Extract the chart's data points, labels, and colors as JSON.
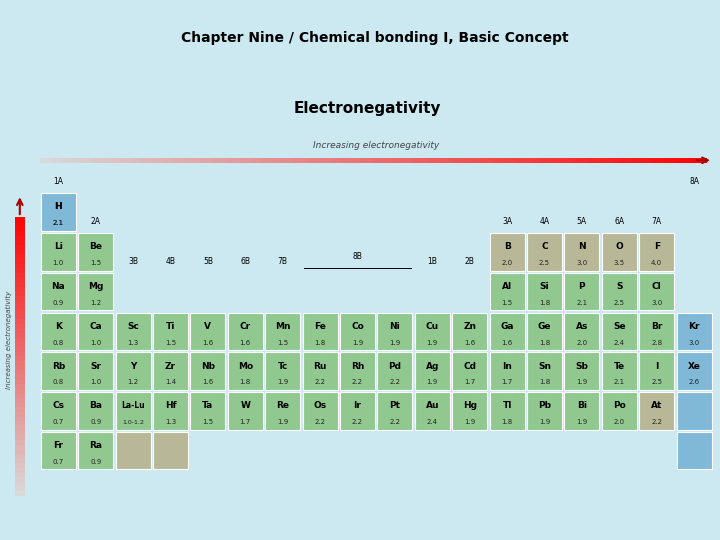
{
  "title": "Chapter Nine / Chemical bonding I, Basic Concept",
  "subtitle": "Electronegativity",
  "increasing_text": "Increasing electronegativity",
  "bg_color": "#cce8f0",
  "header_color": "#50c8c8",
  "subtitle_box_color": "#40b0a8",
  "cell_green": "#90c890",
  "cell_blue": "#80b8d8",
  "cell_tan": "#b8b898",
  "table_elements": [
    {
      "symbol": "H",
      "val": "2.1",
      "col": 0,
      "row": 0,
      "color": "blue"
    },
    {
      "symbol": "Li",
      "val": "1.0",
      "col": 0,
      "row": 1,
      "color": "green"
    },
    {
      "symbol": "Be",
      "val": "1.5",
      "col": 1,
      "row": 1,
      "color": "green"
    },
    {
      "symbol": "Na",
      "val": "0.9",
      "col": 0,
      "row": 2,
      "color": "green"
    },
    {
      "symbol": "Mg",
      "val": "1.2",
      "col": 1,
      "row": 2,
      "color": "green"
    },
    {
      "symbol": "K",
      "val": "0.8",
      "col": 0,
      "row": 3,
      "color": "green"
    },
    {
      "symbol": "Ca",
      "val": "1.0",
      "col": 1,
      "row": 3,
      "color": "green"
    },
    {
      "symbol": "Rb",
      "val": "0.8",
      "col": 0,
      "row": 4,
      "color": "green"
    },
    {
      "symbol": "Sr",
      "val": "1.0",
      "col": 1,
      "row": 4,
      "color": "green"
    },
    {
      "symbol": "Cs",
      "val": "0.7",
      "col": 0,
      "row": 5,
      "color": "green"
    },
    {
      "symbol": "Ba",
      "val": "0.9",
      "col": 1,
      "row": 5,
      "color": "green"
    },
    {
      "symbol": "Fr",
      "val": "0.7",
      "col": 0,
      "row": 6,
      "color": "green"
    },
    {
      "symbol": "Ra",
      "val": "0.9",
      "col": 1,
      "row": 6,
      "color": "green"
    },
    {
      "symbol": "Sc",
      "val": "1.3",
      "col": 2,
      "row": 3,
      "color": "green"
    },
    {
      "symbol": "Ti",
      "val": "1.5",
      "col": 3,
      "row": 3,
      "color": "green"
    },
    {
      "symbol": "V",
      "val": "1.6",
      "col": 4,
      "row": 3,
      "color": "green"
    },
    {
      "symbol": "Cr",
      "val": "1.6",
      "col": 5,
      "row": 3,
      "color": "green"
    },
    {
      "symbol": "Mn",
      "val": "1.5",
      "col": 6,
      "row": 3,
      "color": "green"
    },
    {
      "symbol": "Fe",
      "val": "1.8",
      "col": 7,
      "row": 3,
      "color": "green"
    },
    {
      "symbol": "Co",
      "val": "1.9",
      "col": 8,
      "row": 3,
      "color": "green"
    },
    {
      "symbol": "Ni",
      "val": "1.9",
      "col": 9,
      "row": 3,
      "color": "green"
    },
    {
      "symbol": "Cu",
      "val": "1.9",
      "col": 10,
      "row": 3,
      "color": "green"
    },
    {
      "symbol": "Zn",
      "val": "1.6",
      "col": 11,
      "row": 3,
      "color": "green"
    },
    {
      "symbol": "Y",
      "val": "1.2",
      "col": 2,
      "row": 4,
      "color": "green"
    },
    {
      "symbol": "Zr",
      "val": "1.4",
      "col": 3,
      "row": 4,
      "color": "green"
    },
    {
      "symbol": "Nb",
      "val": "1.6",
      "col": 4,
      "row": 4,
      "color": "green"
    },
    {
      "symbol": "Mo",
      "val": "1.8",
      "col": 5,
      "row": 4,
      "color": "green"
    },
    {
      "symbol": "Tc",
      "val": "1.9",
      "col": 6,
      "row": 4,
      "color": "green"
    },
    {
      "symbol": "Ru",
      "val": "2.2",
      "col": 7,
      "row": 4,
      "color": "green"
    },
    {
      "symbol": "Rh",
      "val": "2.2",
      "col": 8,
      "row": 4,
      "color": "green"
    },
    {
      "symbol": "Pd",
      "val": "2.2",
      "col": 9,
      "row": 4,
      "color": "green"
    },
    {
      "symbol": "Ag",
      "val": "1.9",
      "col": 10,
      "row": 4,
      "color": "green"
    },
    {
      "symbol": "Cd",
      "val": "1.7",
      "col": 11,
      "row": 4,
      "color": "green"
    },
    {
      "symbol": "La-Lu",
      "val": "1.0-1.2",
      "col": 2,
      "row": 5,
      "color": "green"
    },
    {
      "symbol": "Hf",
      "val": "1.3",
      "col": 3,
      "row": 5,
      "color": "green"
    },
    {
      "symbol": "Ta",
      "val": "1.5",
      "col": 4,
      "row": 5,
      "color": "green"
    },
    {
      "symbol": "W",
      "val": "1.7",
      "col": 5,
      "row": 5,
      "color": "green"
    },
    {
      "symbol": "Re",
      "val": "1.9",
      "col": 6,
      "row": 5,
      "color": "green"
    },
    {
      "symbol": "Os",
      "val": "2.2",
      "col": 7,
      "row": 5,
      "color": "green"
    },
    {
      "symbol": "Ir",
      "val": "2.2",
      "col": 8,
      "row": 5,
      "color": "green"
    },
    {
      "symbol": "Pt",
      "val": "2.2",
      "col": 9,
      "row": 5,
      "color": "green"
    },
    {
      "symbol": "Au",
      "val": "2.4",
      "col": 10,
      "row": 5,
      "color": "green"
    },
    {
      "symbol": "Hg",
      "val": "1.9",
      "col": 11,
      "row": 5,
      "color": "green"
    },
    {
      "symbol": "B",
      "val": "2.0",
      "col": 12,
      "row": 1,
      "color": "tan"
    },
    {
      "symbol": "C",
      "val": "2.5",
      "col": 13,
      "row": 1,
      "color": "tan"
    },
    {
      "symbol": "N",
      "val": "3.0",
      "col": 14,
      "row": 1,
      "color": "tan"
    },
    {
      "symbol": "O",
      "val": "3.5",
      "col": 15,
      "row": 1,
      "color": "tan"
    },
    {
      "symbol": "F",
      "val": "4.0",
      "col": 16,
      "row": 1,
      "color": "tan"
    },
    {
      "symbol": "Al",
      "val": "1.5",
      "col": 12,
      "row": 2,
      "color": "green"
    },
    {
      "symbol": "Si",
      "val": "1.8",
      "col": 13,
      "row": 2,
      "color": "green"
    },
    {
      "symbol": "P",
      "val": "2.1",
      "col": 14,
      "row": 2,
      "color": "green"
    },
    {
      "symbol": "S",
      "val": "2.5",
      "col": 15,
      "row": 2,
      "color": "green"
    },
    {
      "symbol": "Cl",
      "val": "3.0",
      "col": 16,
      "row": 2,
      "color": "green"
    },
    {
      "symbol": "Ga",
      "val": "1.6",
      "col": 12,
      "row": 3,
      "color": "green"
    },
    {
      "symbol": "Ge",
      "val": "1.8",
      "col": 13,
      "row": 3,
      "color": "green"
    },
    {
      "symbol": "As",
      "val": "2.0",
      "col": 14,
      "row": 3,
      "color": "green"
    },
    {
      "symbol": "Se",
      "val": "2.4",
      "col": 15,
      "row": 3,
      "color": "green"
    },
    {
      "symbol": "Br",
      "val": "2.8",
      "col": 16,
      "row": 3,
      "color": "green"
    },
    {
      "symbol": "Kr",
      "val": "3.0",
      "col": 17,
      "row": 3,
      "color": "blue"
    },
    {
      "symbol": "In",
      "val": "1.7",
      "col": 12,
      "row": 4,
      "color": "green"
    },
    {
      "symbol": "Sn",
      "val": "1.8",
      "col": 13,
      "row": 4,
      "color": "green"
    },
    {
      "symbol": "Sb",
      "val": "1.9",
      "col": 14,
      "row": 4,
      "color": "green"
    },
    {
      "symbol": "Te",
      "val": "2.1",
      "col": 15,
      "row": 4,
      "color": "green"
    },
    {
      "symbol": "I",
      "val": "2.5",
      "col": 16,
      "row": 4,
      "color": "green"
    },
    {
      "symbol": "Xe",
      "val": "2.6",
      "col": 17,
      "row": 4,
      "color": "blue"
    },
    {
      "symbol": "Tl",
      "val": "1.8",
      "col": 12,
      "row": 5,
      "color": "green"
    },
    {
      "symbol": "Pb",
      "val": "1.9",
      "col": 13,
      "row": 5,
      "color": "green"
    },
    {
      "symbol": "Bi",
      "val": "1.9",
      "col": 14,
      "row": 5,
      "color": "green"
    },
    {
      "symbol": "Po",
      "val": "2.0",
      "col": 15,
      "row": 5,
      "color": "green"
    },
    {
      "symbol": "At",
      "val": "2.2",
      "col": 16,
      "row": 5,
      "color": "tan"
    },
    {
      "symbol": "",
      "val": "",
      "col": 17,
      "row": 5,
      "color": "blue"
    },
    {
      "symbol": "",
      "val": "",
      "col": 17,
      "row": 6,
      "color": "blue"
    },
    {
      "symbol": "",
      "val": "",
      "col": 2,
      "row": 6,
      "color": "tan"
    },
    {
      "symbol": "",
      "val": "",
      "col": 3,
      "row": 6,
      "color": "tan"
    }
  ],
  "group_labels_top": [
    {
      "text": "1A",
      "col": 0
    },
    {
      "text": "8A",
      "col": 17
    }
  ],
  "group_labels_mid": [
    {
      "text": "2A",
      "col": 1,
      "ref_row": 1
    },
    {
      "text": "3A",
      "col": 12,
      "ref_row": 1
    },
    {
      "text": "4A",
      "col": 13,
      "ref_row": 1
    },
    {
      "text": "5A",
      "col": 14,
      "ref_row": 1
    },
    {
      "text": "6A",
      "col": 15,
      "ref_row": 1
    },
    {
      "text": "7A",
      "col": 16,
      "ref_row": 1
    }
  ],
  "group_labels_trans": [
    {
      "text": "3B",
      "col": 2
    },
    {
      "text": "4B",
      "col": 3
    },
    {
      "text": "5B",
      "col": 4
    },
    {
      "text": "6B",
      "col": 5
    },
    {
      "text": "7B",
      "col": 6
    },
    {
      "text": "1B",
      "col": 10
    },
    {
      "text": "2B",
      "col": 11
    }
  ]
}
